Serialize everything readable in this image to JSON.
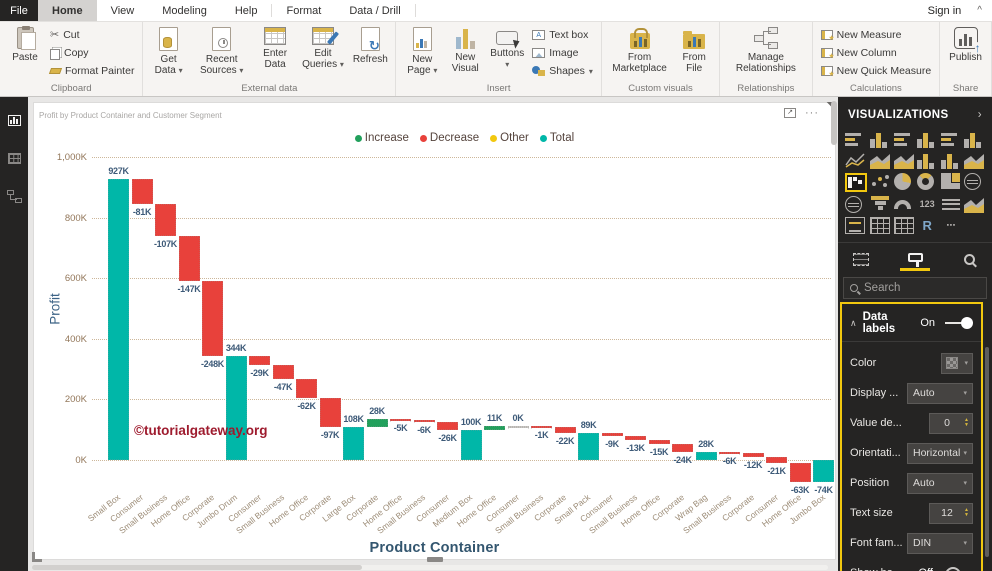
{
  "icons": {
    "dropdown": "▾",
    "chevron_right": "›",
    "collapse_section": "∧",
    "ribbon_collapse": "^",
    "focus_mode": "↗",
    "more_options": "···",
    "spin_up": "▲",
    "spin_down": "▼",
    "scissors": "✂",
    "refresh": "↻",
    "star": "★",
    "textbox_glyph": "A",
    "card_glyph": "123",
    "r_glyph": "R",
    "more_glyph": "⋯"
  },
  "titlebar": {
    "file": "File",
    "tabs": [
      "Home",
      "View",
      "Modeling",
      "Help",
      "Format",
      "Data / Drill"
    ],
    "active_tab": "Home",
    "sign_in": "Sign in"
  },
  "ribbon": {
    "clipboard": {
      "label": "Clipboard",
      "paste": "Paste",
      "cut": "Cut",
      "copy": "Copy",
      "format_painter": "Format Painter"
    },
    "external_data": {
      "label": "External data",
      "get_data": "Get Data",
      "recent_sources": "Recent Sources",
      "enter_data": "Enter Data",
      "edit_queries": "Edit Queries",
      "refresh": "Refresh"
    },
    "insert": {
      "label": "Insert",
      "new_page": "New Page",
      "new_visual": "New Visual",
      "buttons": "Buttons",
      "text_box": "Text box",
      "image": "Image",
      "shapes": "Shapes"
    },
    "custom_visuals": {
      "label": "Custom visuals",
      "from_marketplace": "From Marketplace",
      "from_file": "From File"
    },
    "relationships": {
      "label": "Relationships",
      "manage_relationships": "Manage Relationships"
    },
    "calculations": {
      "label": "Calculations",
      "new_measure": "New Measure",
      "new_column": "New Column",
      "new_quick_measure": "New Quick Measure"
    },
    "share": {
      "label": "Share",
      "publish": "Publish"
    }
  },
  "chart_data": {
    "type": "waterfall",
    "title": "Profit by Product Container and Customer Segment",
    "xlabel": "Product Container",
    "ylabel": "Profit",
    "watermark": "©tutorialgateway.org",
    "legend_position": "top-center",
    "grid": "dotted horizontal",
    "ylim": [
      -90,
      1000
    ],
    "y_ticks": [
      {
        "value": 1000,
        "label": "1,000K"
      },
      {
        "value": 800,
        "label": "800K"
      },
      {
        "value": 600,
        "label": "600K"
      },
      {
        "value": 400,
        "label": "400K"
      },
      {
        "value": 200,
        "label": "200K"
      },
      {
        "value": 0,
        "label": "0K"
      }
    ],
    "legend": [
      {
        "key": "increase",
        "label": "Increase",
        "color": "#22A05C"
      },
      {
        "key": "decrease",
        "label": "Decrease",
        "color": "#E8413B"
      },
      {
        "key": "other",
        "label": "Other",
        "color": "#F2C80F"
      },
      {
        "key": "total",
        "label": "Total",
        "color": "#00B7A8"
      }
    ],
    "bars": [
      {
        "category": "Small Box",
        "label": "927K",
        "value": 927,
        "start": 0,
        "end": 927,
        "type": "total"
      },
      {
        "category": "Consumer",
        "label": "-81K",
        "value": -81,
        "start": 927,
        "end": 846,
        "type": "decrease"
      },
      {
        "category": "Small Business",
        "label": "-107K",
        "value": -107,
        "start": 846,
        "end": 739,
        "type": "decrease"
      },
      {
        "category": "Home Office",
        "label": "-147K",
        "value": -147,
        "start": 739,
        "end": 592,
        "type": "decrease"
      },
      {
        "category": "Corporate",
        "label": "-248K",
        "value": -248,
        "start": 592,
        "end": 344,
        "type": "decrease"
      },
      {
        "category": "Jumbo Drum",
        "label": "344K",
        "value": 344,
        "start": 0,
        "end": 344,
        "type": "total"
      },
      {
        "category": "Consumer",
        "label": "-29K",
        "value": -29,
        "start": 344,
        "end": 315,
        "type": "decrease"
      },
      {
        "category": "Small Business",
        "label": "-47K",
        "value": -47,
        "start": 315,
        "end": 268,
        "type": "decrease"
      },
      {
        "category": "Home Office",
        "label": "-62K",
        "value": -62,
        "start": 268,
        "end": 206,
        "type": "decrease"
      },
      {
        "category": "Corporate",
        "label": "-97K",
        "value": -97,
        "start": 206,
        "end": 109,
        "type": "decrease"
      },
      {
        "category": "Large Box",
        "label": "108K",
        "value": 108,
        "start": 0,
        "end": 108,
        "type": "total"
      },
      {
        "category": "Corporate",
        "label": "28K",
        "value": 28,
        "start": 108,
        "end": 136,
        "type": "increase"
      },
      {
        "category": "Home Office",
        "label": "-5K",
        "value": -5,
        "start": 136,
        "end": 131,
        "type": "decrease"
      },
      {
        "category": "Small Business",
        "label": "-6K",
        "value": -6,
        "start": 131,
        "end": 125,
        "type": "decrease"
      },
      {
        "category": "Consumer",
        "label": "-26K",
        "value": -26,
        "start": 125,
        "end": 99,
        "type": "decrease"
      },
      {
        "category": "Medium Box",
        "label": "100K",
        "value": 100,
        "start": 0,
        "end": 100,
        "type": "total"
      },
      {
        "category": "Home Office",
        "label": "11K",
        "value": 11,
        "start": 100,
        "end": 111,
        "type": "increase"
      },
      {
        "category": "Consumer",
        "label": "0K",
        "value": 0,
        "start": 111,
        "end": 111,
        "type": "other"
      },
      {
        "category": "Small Business",
        "label": "-1K",
        "value": -1,
        "start": 111,
        "end": 110,
        "type": "decrease"
      },
      {
        "category": "Corporate",
        "label": "-22K",
        "value": -22,
        "start": 110,
        "end": 88,
        "type": "decrease"
      },
      {
        "category": "Small Pack",
        "label": "89K",
        "value": 89,
        "start": 0,
        "end": 89,
        "type": "total"
      },
      {
        "category": "Consumer",
        "label": "-9K",
        "value": -9,
        "start": 89,
        "end": 80,
        "type": "decrease"
      },
      {
        "category": "Small Business",
        "label": "-13K",
        "value": -13,
        "start": 80,
        "end": 67,
        "type": "decrease"
      },
      {
        "category": "Home Office",
        "label": "-15K",
        "value": -15,
        "start": 67,
        "end": 52,
        "type": "decrease"
      },
      {
        "category": "Corporate",
        "label": "-24K",
        "value": -24,
        "start": 52,
        "end": 28,
        "type": "decrease"
      },
      {
        "category": "Wrap Bag",
        "label": "28K",
        "value": 28,
        "start": 0,
        "end": 28,
        "type": "total"
      },
      {
        "category": "Small Business",
        "label": "-6K",
        "value": -6,
        "start": 28,
        "end": 22,
        "type": "decrease"
      },
      {
        "category": "Corporate",
        "label": "-12K",
        "value": -12,
        "start": 22,
        "end": 10,
        "type": "decrease"
      },
      {
        "category": "Consumer",
        "label": "-21K",
        "value": -21,
        "start": 10,
        "end": -11,
        "type": "decrease"
      },
      {
        "category": "Home Office",
        "label": "-63K",
        "value": -63,
        "start": -11,
        "end": -74,
        "type": "decrease"
      },
      {
        "category": "Jumbo Box",
        "label": "-74K",
        "value": -74,
        "start": 0,
        "end": -74,
        "type": "total"
      }
    ]
  },
  "viz_pane": {
    "title": "VISUALIZATIONS",
    "search_placeholder": "Search",
    "gallery": [
      "stacked-bar-chart",
      "stacked-column-chart",
      "clustered-bar-chart",
      "clustered-column-chart",
      "100-stacked-bar-chart",
      "100-stacked-column-chart",
      "line-chart",
      "area-chart",
      "stacked-area-chart",
      "line-and-stacked-column-chart",
      "line-and-clustered-column-chart",
      "ribbon-chart",
      "waterfall-chart",
      "scatter-chart",
      "pie-chart",
      "donut-chart",
      "treemap",
      "map",
      "filled-map",
      "funnel",
      "gauge",
      "card",
      "multi-row-card",
      "kpi",
      "slicer",
      "table",
      "matrix",
      "r-script-visual",
      "more-options"
    ],
    "selected_visual": "waterfall-chart",
    "tabs": [
      "fields",
      "format",
      "analytics"
    ],
    "active_tab": "format",
    "format_section": {
      "title": "Data labels",
      "toggle_state": "On",
      "rows": [
        {
          "label": "Color",
          "control": "color",
          "value": ""
        },
        {
          "label": "Display ...",
          "control": "dropdown",
          "value": "Auto"
        },
        {
          "label": "Value de...",
          "control": "spinner",
          "value": "0"
        },
        {
          "label": "Orientati...",
          "control": "dropdown",
          "value": "Horizontal"
        },
        {
          "label": "Position",
          "control": "dropdown",
          "value": "Auto"
        },
        {
          "label": "Text size",
          "control": "spinner",
          "value": "12"
        },
        {
          "label": "Font fam...",
          "control": "dropdown",
          "value": "DIN"
        },
        {
          "label": "Show ba...",
          "control": "toggle",
          "value": "Off"
        }
      ]
    },
    "highlight_color": "#F2C80F"
  }
}
